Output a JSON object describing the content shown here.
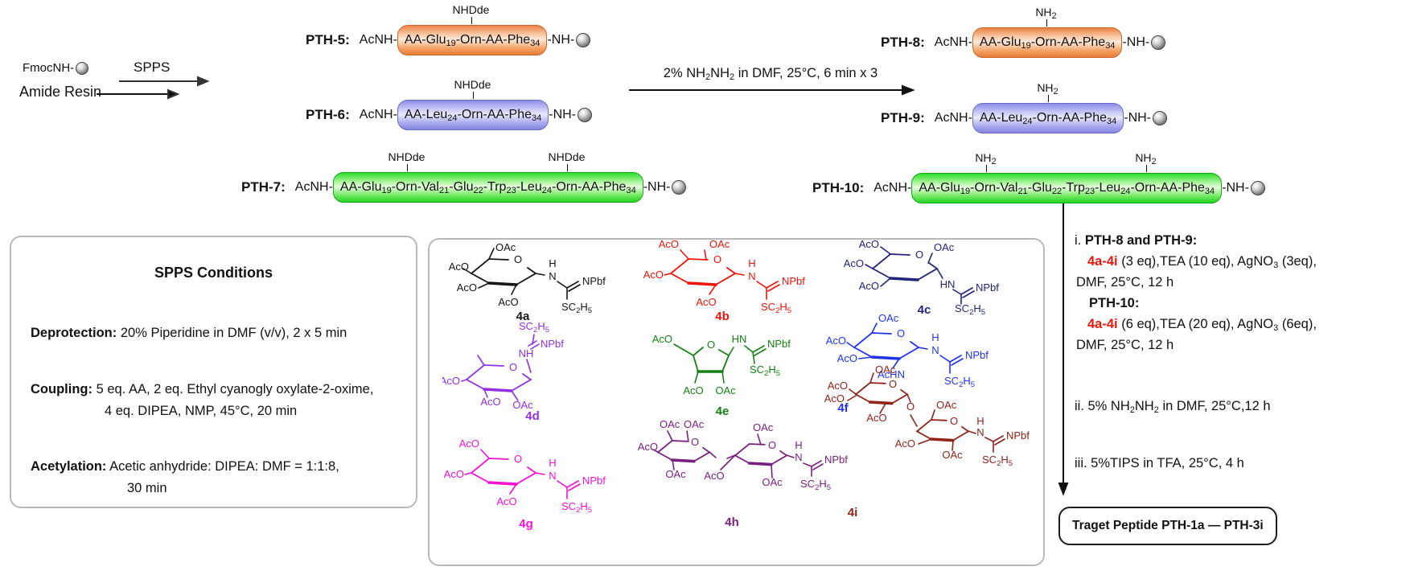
{
  "colors": {
    "orange_box": "#ec8343",
    "blue_box": "#8c8ce8",
    "green_box": "#2ddd2d",
    "gray_box_border": "#b9b9b9",
    "red_text": "#e8190f",
    "resin_sphere": "#8a8a8a"
  },
  "start": {
    "fmoc_label": "FmocNH-",
    "resin_label": "Amide Resin",
    "spps_label": "SPPS"
  },
  "arrow1_label": "2% NH_2_NH_2_ in DMF, 25°C, 6 min x 3",
  "peptides": [
    {
      "name": "PTH-5:",
      "pre": "AcNH-",
      "boxed": "AA-Glu_19_-Orn-AA-Phe_34_",
      "post": "-NH-",
      "tags": [
        "NHDde"
      ],
      "theme": "orange"
    },
    {
      "name": "PTH-6:",
      "pre": "AcNH-",
      "boxed": "AA-Leu_24_-Orn-AA-Phe_34_",
      "post": "-NH-",
      "tags": [
        "NHDde"
      ],
      "theme": "blue"
    },
    {
      "name": "PTH-7:",
      "pre": "AcNH-",
      "boxed": "AA-Glu_19_-Orn-Val_21_-Glu_22_-Trp_23_-Leu_24_-Orn-AA-Phe_34_",
      "post": "-NH-",
      "tags": [
        "NHDde",
        "NHDde"
      ],
      "theme": "green"
    },
    {
      "name": "PTH-8:",
      "pre": "AcNH-",
      "boxed": "AA-Glu_19_-Orn-AA-Phe_34_",
      "post": "-NH-",
      "tags": [
        "NH_2_"
      ],
      "theme": "orange"
    },
    {
      "name": "PTH-9:",
      "pre": "AcNH-",
      "boxed": "AA-Leu_24_-Orn-AA-Phe_34_",
      "post": "-NH-",
      "tags": [
        "NH_2_"
      ],
      "theme": "blue"
    },
    {
      "name": "PTH-10:",
      "pre": "AcNH-",
      "boxed": "AA-Glu_19_-Orn-Val_21_-Glu_22_-Trp_23_-Leu_24_-Orn-AA-Phe_34_",
      "post": "-NH-",
      "tags": [
        "NH_2_",
        "NH_2_"
      ],
      "theme": "green"
    }
  ],
  "spps_box": {
    "title": "SPPS Conditions",
    "items": [
      {
        "head": "Deprotection:",
        "lines": [
          "20% Piperidine in DMF (v/v), 2 x 5 min"
        ]
      },
      {
        "head": "Coupling:",
        "lines": [
          "5 eq. AA, 2 eq. Ethyl cyanogly oxylate-2-oxime,",
          "4 eq. DIPEA, NMP, 45°C, 20 min"
        ]
      },
      {
        "head": "Acetylation:",
        "lines": [
          "Acetic anhydride: DIPEA: DMF = 1:1:8,",
          "30 min"
        ]
      }
    ]
  },
  "sugar_box": {
    "items": [
      {
        "id": "4a",
        "color": "#161616",
        "labels": [
          "OAc",
          "AcO",
          "AcO",
          "AcO",
          "O",
          "H",
          "N",
          "NPbf",
          "SC_2_H_5_"
        ]
      },
      {
        "id": "4b",
        "color": "#ee1408",
        "labels": [
          "AcO",
          "OAc",
          "AcO",
          "AcO",
          "O",
          "H",
          "N",
          "NPbf",
          "SC_2_H_5_"
        ]
      },
      {
        "id": "4c",
        "color": "#232377",
        "labels": [
          "AcO",
          "AcO",
          "AcO",
          "OAc",
          "O",
          "HN",
          "NPbf",
          "SC_2_H_5_"
        ]
      },
      {
        "id": "4d",
        "color": "#9030e0",
        "labels": [
          "SC_2_H_5_",
          "NPbf",
          "NH",
          "O",
          "AcO",
          "AcO",
          "OAc"
        ]
      },
      {
        "id": "4e",
        "color": "#158015",
        "labels": [
          "AcO",
          "O",
          "HN",
          "NPbf",
          "SC_2_H_5_",
          "AcO",
          "OAc"
        ]
      },
      {
        "id": "4f",
        "color": "#2233ee",
        "labels": [
          "OAc",
          "AcO",
          "AcO",
          "AcHN",
          "O",
          "H",
          "N",
          "NPbf",
          "SC_2_H_5_"
        ]
      },
      {
        "id": "4g",
        "color": "#f511d7",
        "labels": [
          "AcO",
          "AcO",
          "AcO",
          "O",
          "H",
          "N",
          "NPbf",
          "SC_2_H_5_"
        ]
      },
      {
        "id": "4h",
        "color": "#7a2080",
        "labels": [
          "OAc",
          "OAc",
          "AcO",
          "OAc",
          "O",
          "OAc",
          "AcO",
          "O",
          "OAc",
          "H",
          "N",
          "NPbf",
          "SC_2_H_5_"
        ]
      },
      {
        "id": "4i",
        "color": "#90231a",
        "labels": [
          "OAc",
          "AcO",
          "AcO",
          "AcO",
          "O",
          "O",
          "OAc",
          "AcO",
          "O",
          "OAc",
          "H",
          "N",
          "NPbf",
          "SC_2_H_5_"
        ]
      }
    ]
  },
  "steps": {
    "i_lines": [
      [
        {
          "t": "i. "
        },
        {
          "t": "PTH-8 and PTH-9:",
          "b": true
        }
      ],
      [
        {
          "t": "4a-4i",
          "b": true,
          "c": "red"
        },
        {
          "t": " (3 eq),TEA (10 eq), AgNO_3_ (3eq),"
        }
      ],
      [
        {
          "t": "DMF, 25°C, 12 h"
        }
      ],
      [
        {
          "t": "PTH-10:",
          "b": true
        }
      ],
      [
        {
          "t": "4a-4i",
          "b": true,
          "c": "red"
        },
        {
          "t": " (6 eq),TEA (20 eq), AgNO_3_ (6eq),"
        }
      ],
      [
        {
          "t": "DMF, 25°C, 12 h"
        }
      ]
    ],
    "ii": "ii. 5% NH_2_NH_2_ in DMF, 25°C,12 h",
    "iii": "iii. 5%TIPS in TFA, 25°C, 4 h"
  },
  "target_label": "Traget Peptide PTH-1a — PTH-3i"
}
